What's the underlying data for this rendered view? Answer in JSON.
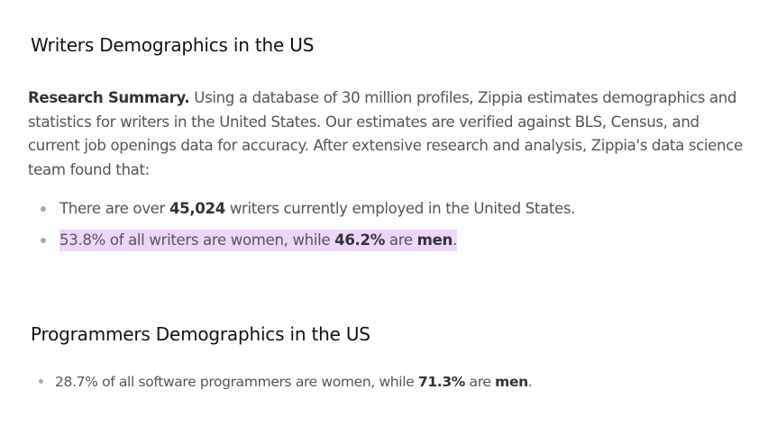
{
  "section1": {
    "title": "Writers Demographics in the US",
    "summary": {
      "lead": "Research Summary.",
      "text": " Using a database of 30 million profiles, Zippia estimates demographics and statistics for writers in the United States. Our estimates are verified against BLS, Census, and current job openings data for accuracy. After extensive research and analysis, Zippia's data science team found that:"
    },
    "bullets": [
      {
        "part1": "There are over ",
        "bold1": "45,024",
        "part2": " writers currently employed in the United States."
      },
      {
        "part1": "53.8% of all writers are women, while ",
        "bold1": "46.2%",
        "part2": " are ",
        "bold2": "men",
        "part3": "."
      }
    ]
  },
  "section2": {
    "title": "Programmers Demographics in the US",
    "bullets": [
      {
        "part1": "28.7% of all software programmers are women, while ",
        "bold1": "71.3%",
        "part2": " are ",
        "bold2": "men",
        "part3": "."
      }
    ]
  },
  "colors": {
    "heading": "#111111",
    "body": "#555555",
    "bold": "#333333",
    "highlight": "#ecd7fb",
    "bullet": "#aaaaaa"
  }
}
